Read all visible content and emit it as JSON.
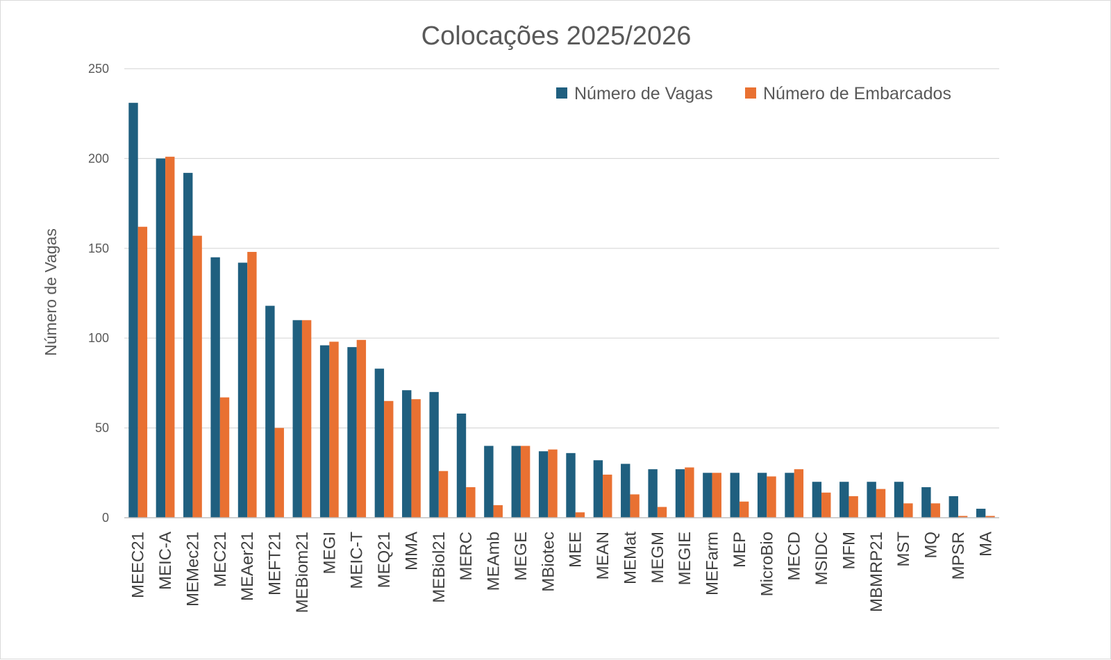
{
  "chart_data": {
    "type": "bar",
    "title": "Colocações 2025/2026",
    "xlabel": "",
    "ylabel": "Número de Vagas",
    "ylim": [
      0,
      250
    ],
    "yticks": [
      0,
      50,
      100,
      150,
      200,
      250
    ],
    "grid": true,
    "legend_position": "top-right",
    "categories": [
      "MEEC21",
      "MEIC-A",
      "MEMec21",
      "MEC21",
      "MEAer21",
      "MEFT21",
      "MEBiom21",
      "MEGI",
      "MEIC-T",
      "MEQ21",
      "MMA",
      "MEBiol21",
      "MERC",
      "MEAmb",
      "MEGE",
      "MBiotec",
      "MEE",
      "MEAN",
      "MEMat",
      "MEGM",
      "MEGIE",
      "MEFarm",
      "MEP",
      "MicroBio",
      "MECD",
      "MSIDC",
      "MFM",
      "MBMRP21",
      "MST",
      "MQ",
      "MPSR",
      "MA"
    ],
    "series": [
      {
        "name": "Número de Vagas",
        "color": "#1f5f7f",
        "values": [
          231,
          200,
          192,
          145,
          142,
          118,
          110,
          96,
          95,
          83,
          71,
          70,
          58,
          40,
          40,
          37,
          36,
          32,
          30,
          27,
          27,
          25,
          25,
          25,
          25,
          20,
          20,
          20,
          20,
          17,
          12,
          5
        ]
      },
      {
        "name": "Número de Embarcados",
        "color": "#e97132",
        "values": [
          162,
          201,
          157,
          67,
          148,
          50,
          110,
          98,
          99,
          65,
          66,
          26,
          17,
          7,
          40,
          38,
          3,
          24,
          13,
          6,
          28,
          25,
          9,
          23,
          27,
          14,
          12,
          16,
          8,
          8,
          1,
          1
        ]
      }
    ]
  }
}
